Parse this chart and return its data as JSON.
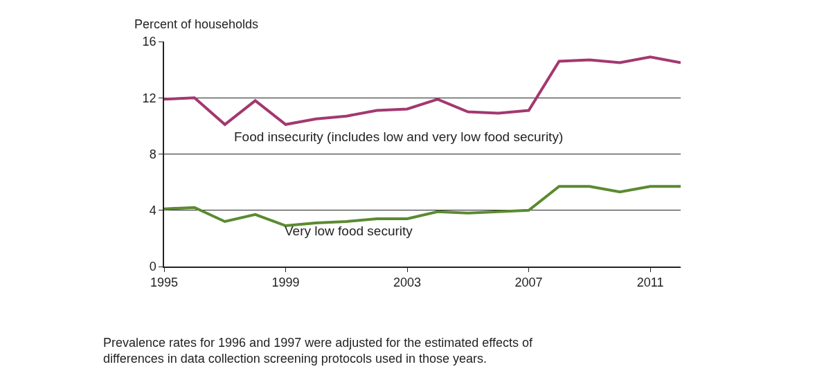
{
  "chart_data": {
    "type": "line",
    "ylabel": "Percent of households",
    "x": [
      1995,
      1996,
      1997,
      1998,
      1999,
      2000,
      2001,
      2002,
      2003,
      2004,
      2005,
      2006,
      2007,
      2008,
      2009,
      2010,
      2011,
      2012
    ],
    "series": [
      {
        "name": "Food insecurity (includes low and very low food security)",
        "color": "#a3386f",
        "values": [
          11.9,
          12.0,
          10.1,
          11.8,
          10.1,
          10.5,
          10.7,
          11.1,
          11.2,
          11.9,
          11.0,
          10.9,
          11.1,
          14.6,
          14.7,
          14.5,
          14.9,
          14.5
        ]
      },
      {
        "name": "Very low food security",
        "color": "#5b8a30",
        "values": [
          4.1,
          4.2,
          3.2,
          3.7,
          2.9,
          3.1,
          3.2,
          3.4,
          3.4,
          3.9,
          3.8,
          3.9,
          4.0,
          5.7,
          5.7,
          5.3,
          5.7,
          5.7
        ]
      }
    ],
    "xlim": [
      1995,
      2012
    ],
    "xticks": [
      1995,
      1999,
      2003,
      2007,
      2011
    ],
    "ylim": [
      0,
      16
    ],
    "yticks": [
      0,
      4,
      8,
      12,
      16
    ],
    "grid": "y",
    "annotations": [
      "Prevalence rates for 1996 and 1997 were adjusted for the estimated effects of\ndifferences in data collection screening protocols used in those years."
    ]
  }
}
